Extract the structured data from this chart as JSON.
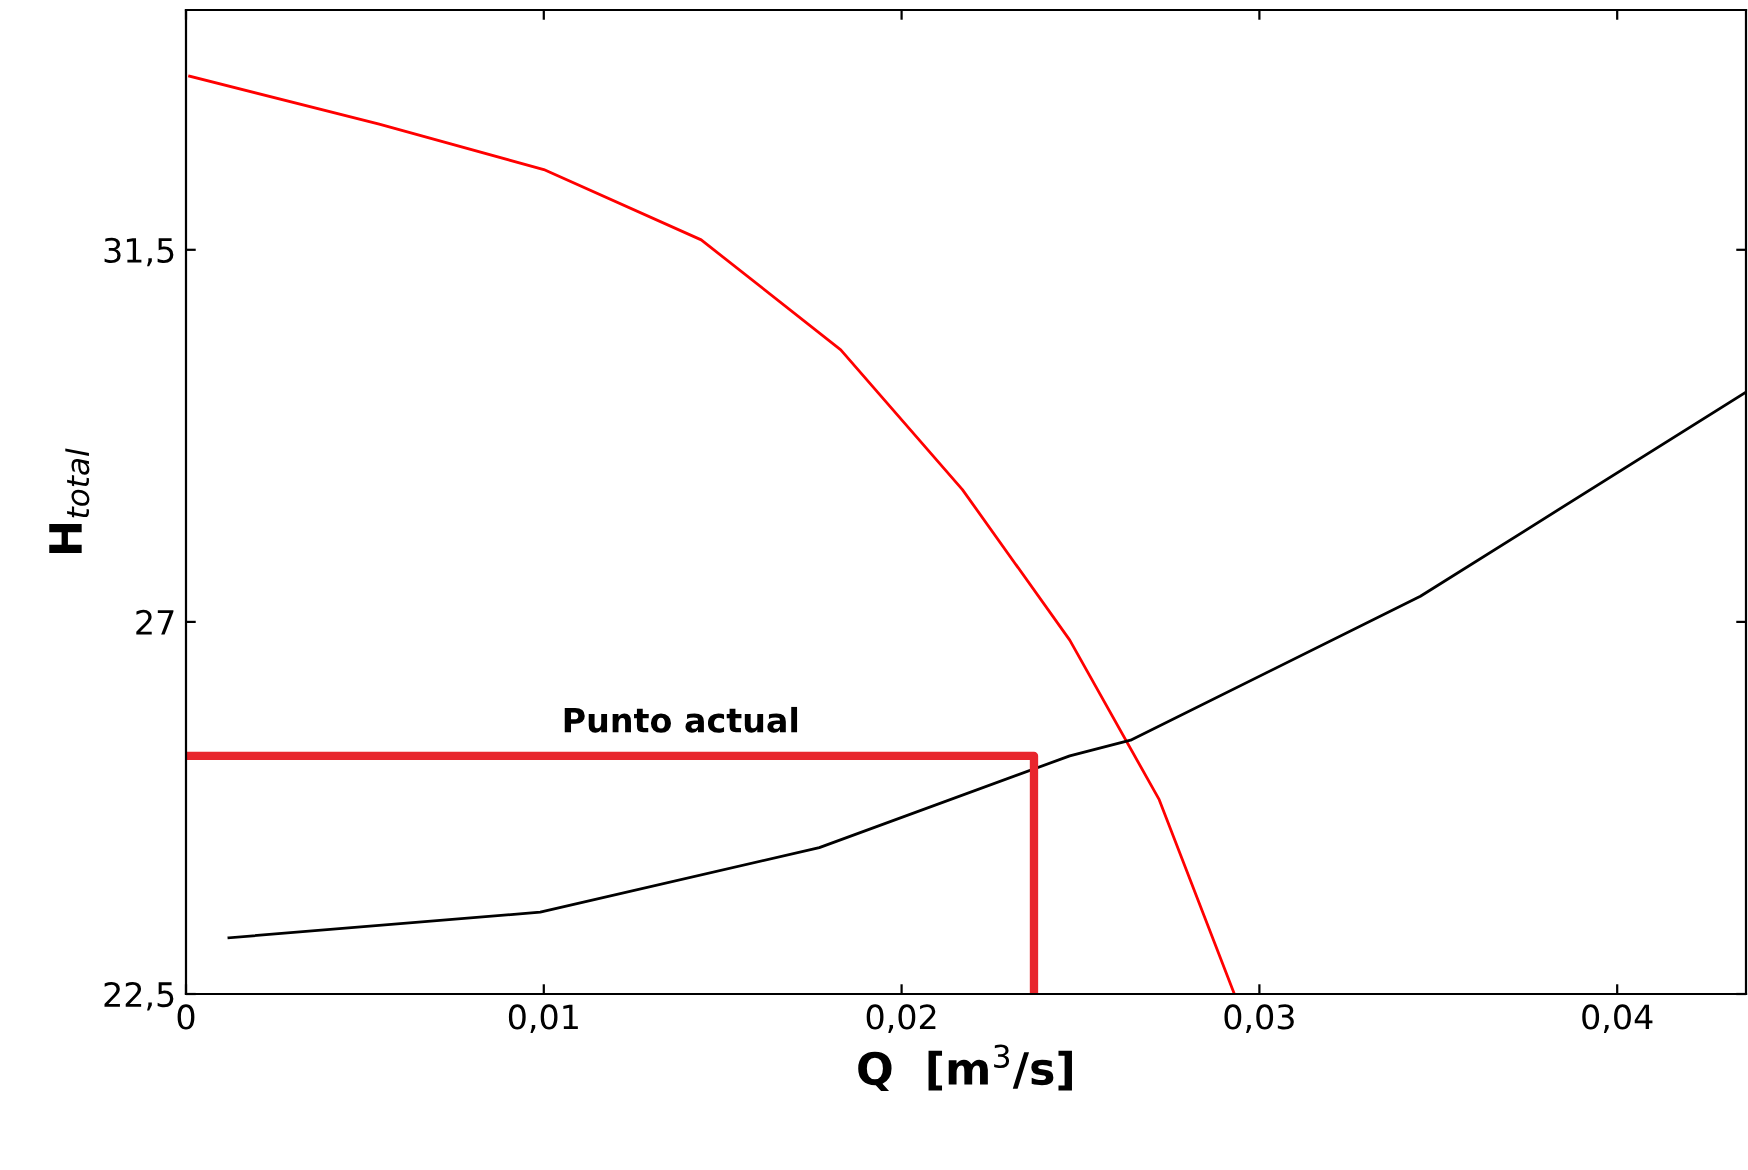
{
  "chart_data": {
    "type": "line",
    "xlabel": "Q  [m$^{3}$/s]",
    "ylabel": "H$_{total}$",
    "xlim": [
      0,
      0.0436
    ],
    "ylim": [
      22.5,
      34.4
    ],
    "xticks": [
      0,
      {
        "value": 0.01,
        "label": "0,01"
      },
      {
        "value": 0.02,
        "label": "0,02"
      },
      {
        "value": 0.03,
        "label": "0,03"
      },
      {
        "value": 0.04,
        "label": "0,04"
      }
    ],
    "yticks": [
      {
        "value": 22.5,
        "label": "22,5"
      },
      27,
      {
        "value": 31.5,
        "label": "31,5"
      }
    ],
    "grid": false,
    "legend": false,
    "marker": "none",
    "line_style": "solid",
    "series": [
      {
        "color": "#ff0000",
        "x": [
          0.0001,
          0.0054,
          0.01,
          0.0144,
          0.0183,
          0.0217,
          0.0247,
          0.0272,
          0.0293
        ],
        "values": [
          33.6,
          33.02,
          32.47,
          31.62,
          30.29,
          28.6,
          26.78,
          24.85,
          22.5
        ]
      },
      {
        "color": "#000000",
        "x": [
          0.0012,
          0.0099,
          0.0177,
          0.0247,
          0.0264,
          0.0345,
          0.0436
        ],
        "values": [
          23.18,
          23.49,
          24.27,
          25.38,
          25.57,
          27.31,
          29.78
        ]
      },
      {
        "color": "#e8262d",
        "x": [
          0,
          0.0237,
          0.0237
        ],
        "values": [
          25.38,
          25.38,
          22.5
        ]
      }
    ],
    "annotations": [
      {
        "text": "Punto actual",
        "x": 0.0105,
        "y": 25.38
      }
    ]
  }
}
